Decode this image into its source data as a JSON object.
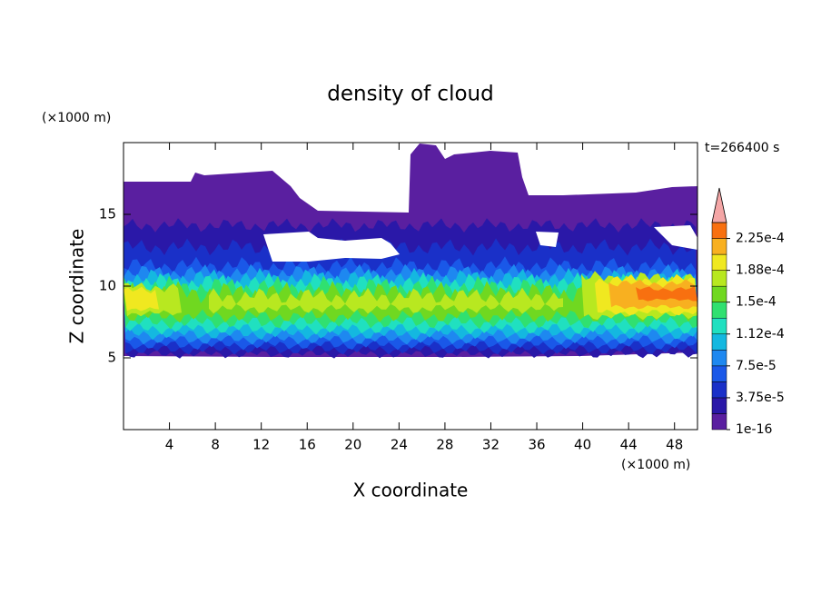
{
  "chart_data": {
    "type": "contour",
    "title": "density of cloud",
    "x_label": "X coordinate",
    "y_label": "Z coordinate",
    "x_unit": "(×1000 m)",
    "y_unit": "(×1000 m)",
    "annotation": "t=266400 s",
    "xlim": [
      0,
      50
    ],
    "xticks": [
      4,
      8,
      12,
      16,
      20,
      24,
      28,
      32,
      36,
      40,
      44,
      48
    ],
    "ylim": [
      0,
      20
    ],
    "yticks": [
      5,
      10,
      15
    ],
    "levels": [
      1e-16,
      1.875e-05,
      3.75e-05,
      5.625e-05,
      7.5e-05,
      9.375e-05,
      0.0001125,
      0.00013125,
      0.00015,
      0.00016875,
      0.0001875,
      0.00020625,
      0.000225,
      0.00024375
    ],
    "colors": [
      "#5a1fa0",
      "#2a18a8",
      "#1a30c8",
      "#1a58e8",
      "#1e88f0",
      "#14b8e0",
      "#20e0c0",
      "#30e070",
      "#70d820",
      "#b8e820",
      "#f0e820",
      "#f8b020",
      "#f87010"
    ],
    "overflow_color": "#f4a6a6",
    "colorbar_ticks": [
      {
        "value": 1e-16,
        "label": "1e-16"
      },
      {
        "value": 3.75e-05,
        "label": "3.75e-5"
      },
      {
        "value": 7.5e-05,
        "label": "7.5e-5"
      },
      {
        "value": 0.0001125,
        "label": "1.12e-4"
      },
      {
        "value": 0.00015,
        "label": "1.5e-4"
      },
      {
        "value": 0.0001875,
        "label": "1.88e-4"
      },
      {
        "value": 0.000225,
        "label": "2.25e-4"
      }
    ]
  }
}
